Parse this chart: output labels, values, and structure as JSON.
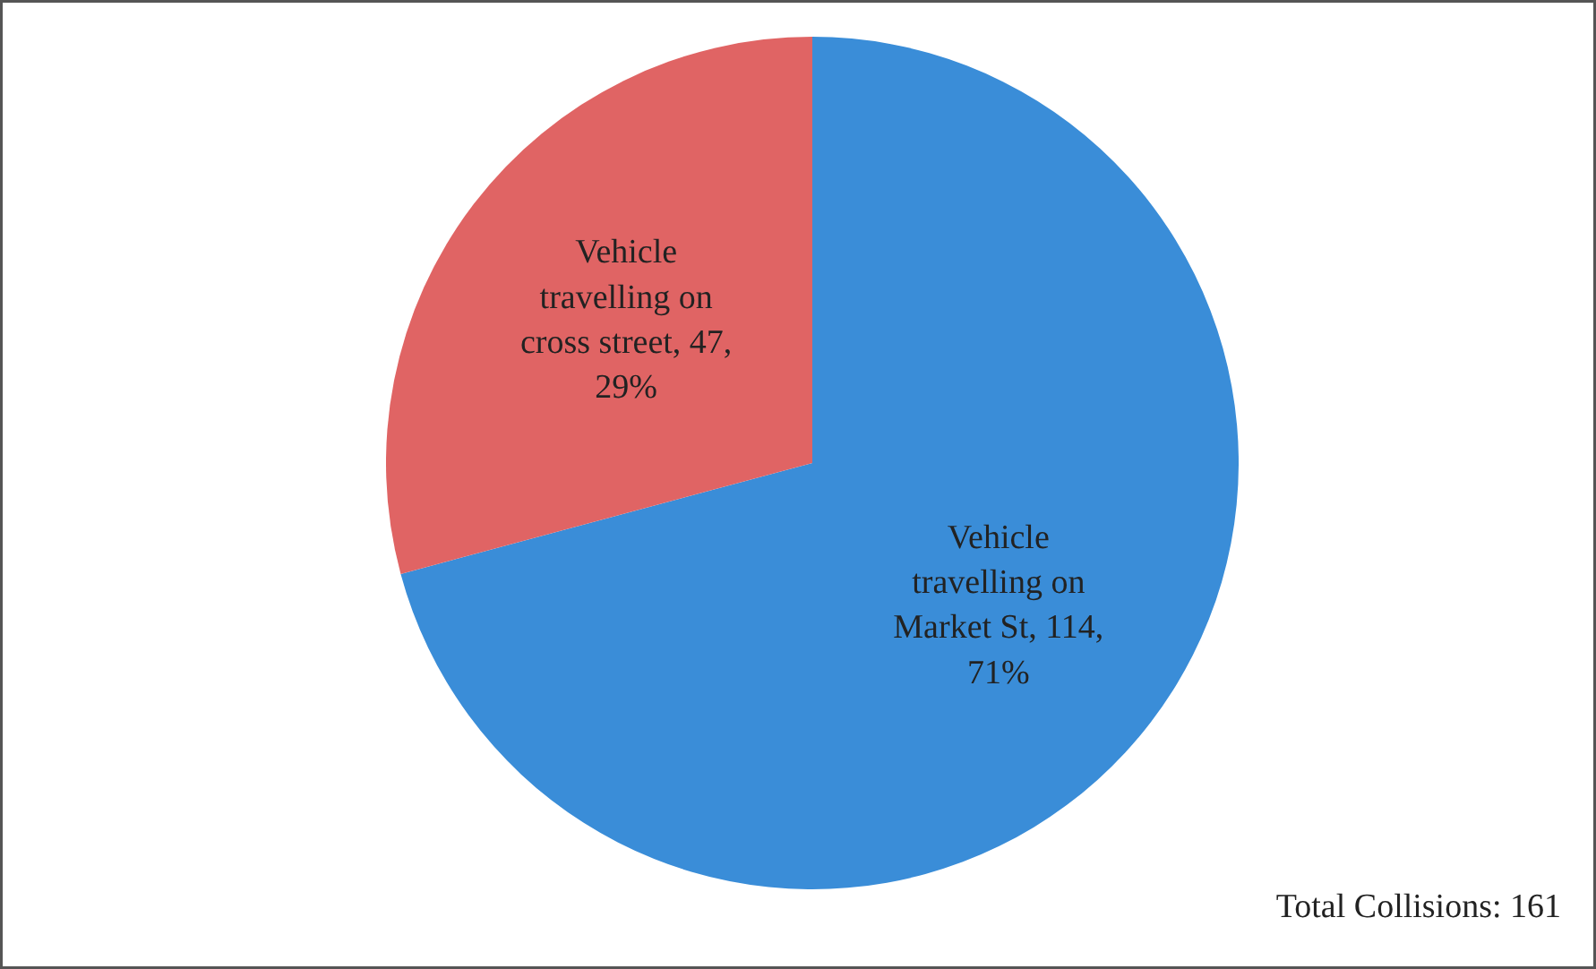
{
  "chart_data": {
    "type": "pie",
    "categories": [
      "Vehicle travelling on Market St",
      "Vehicle travelling on cross street"
    ],
    "values": [
      114,
      47
    ],
    "colors": [
      "#3a8dd8",
      "#e06464"
    ],
    "value_labels": [
      "114, 71%",
      "47, 29%"
    ],
    "annotations": [
      "Total Collisions: 161"
    ]
  }
}
